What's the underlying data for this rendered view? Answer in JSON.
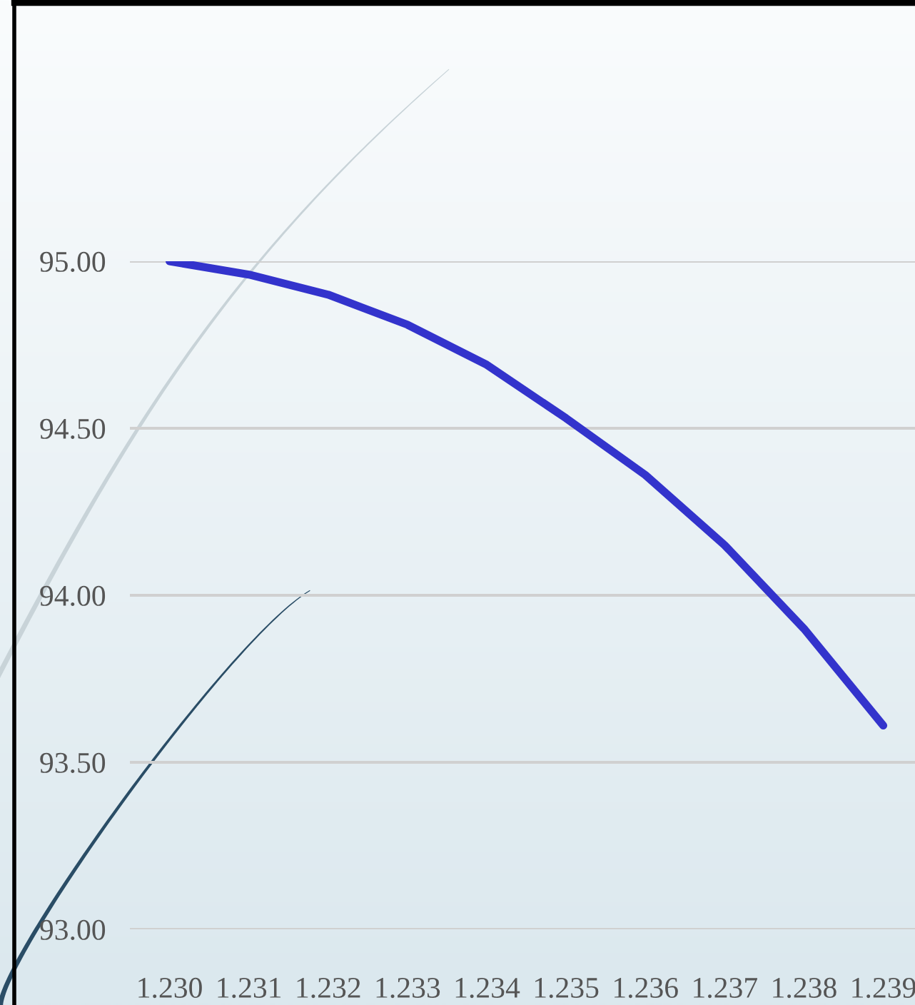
{
  "chart_data": {
    "type": "line",
    "x": [
      1.23,
      1.231,
      1.232,
      1.233,
      1.234,
      1.235,
      1.236,
      1.237,
      1.238,
      1.239
    ],
    "series": [
      {
        "color": "#3333cc",
        "values": [
          95.0,
          94.96,
          94.9,
          94.81,
          94.69,
          94.53,
          94.36,
          94.15,
          93.9,
          93.61
        ]
      }
    ],
    "xlim": [
      1.2295,
      1.2394
    ],
    "ylim": [
      93.0,
      95.0
    ],
    "xticks": [
      {
        "value": 1.23,
        "label": "1.230"
      },
      {
        "value": 1.231,
        "label": "1.231"
      },
      {
        "value": 1.232,
        "label": "1.232"
      },
      {
        "value": 1.233,
        "label": "1.233"
      },
      {
        "value": 1.234,
        "label": "1.234"
      },
      {
        "value": 1.235,
        "label": "1.235"
      },
      {
        "value": 1.236,
        "label": "1.236"
      },
      {
        "value": 1.237,
        "label": "1.237"
      },
      {
        "value": 1.238,
        "label": "1.238"
      },
      {
        "value": 1.239,
        "label": "1.239"
      }
    ],
    "yticks": [
      {
        "value": 93.0,
        "label": "93.00"
      },
      {
        "value": 93.5,
        "label": "93.50"
      },
      {
        "value": 94.0,
        "label": "94.00"
      },
      {
        "value": 94.5,
        "label": "94.50"
      },
      {
        "value": 95.0,
        "label": "95.00"
      }
    ],
    "grid": "y",
    "line_style": "solid",
    "marker": "none"
  }
}
